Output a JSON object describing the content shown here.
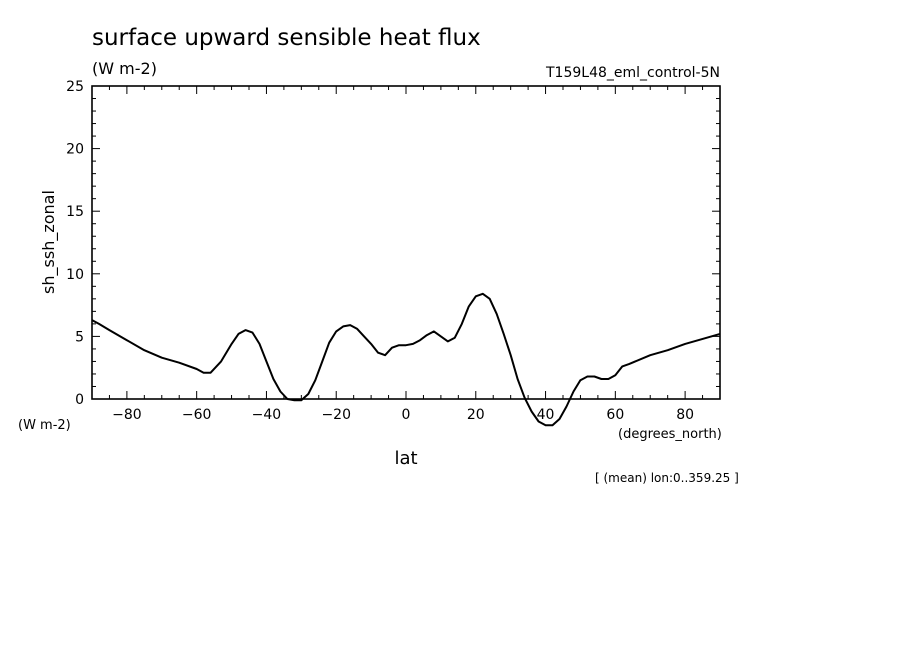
{
  "chart_data": {
    "type": "line",
    "title": "surface upward sensible heat flux",
    "units": "(W m-2)",
    "dataset": "T159L48_eml_control-5N",
    "xlabel": "lat",
    "ylabel": "sh_ssh_zonal",
    "x_units": "(degrees_north)",
    "y_units": "(W m-2)",
    "footnote": "[ (mean) lon:0..359.25 ]",
    "xlim": [
      -90,
      90
    ],
    "ylim": [
      0,
      25
    ],
    "xticks": [
      -80,
      -60,
      -40,
      -20,
      0,
      20,
      40,
      60,
      80
    ],
    "yticks": [
      0,
      5,
      10,
      15,
      20,
      25
    ],
    "grid": false,
    "series": [
      {
        "x": [
          -90,
          -88,
          -85,
          -80,
          -75,
          -70,
          -65,
          -60,
          -58,
          -56,
          -53,
          -50,
          -48,
          -46,
          -44,
          -42,
          -40,
          -38,
          -36,
          -34,
          -32,
          -30,
          -28,
          -26,
          -24,
          -22,
          -20,
          -18,
          -16,
          -14,
          -12,
          -10,
          -8,
          -6,
          -4,
          -2,
          0,
          2,
          4,
          6,
          8,
          10,
          12,
          14,
          16,
          18,
          20,
          22,
          24,
          26,
          28,
          30,
          32,
          34,
          36,
          38,
          40,
          42,
          44,
          46,
          48,
          50,
          52,
          54,
          56,
          58,
          60,
          62,
          64,
          70,
          75,
          80,
          85,
          90
        ],
        "y": [
          6.3,
          6.0,
          5.5,
          4.7,
          3.9,
          3.3,
          2.9,
          2.4,
          2.1,
          2.1,
          3.0,
          4.4,
          5.2,
          5.5,
          5.3,
          4.4,
          3.0,
          1.6,
          0.6,
          0.0,
          -0.1,
          -0.1,
          0.4,
          1.5,
          3.0,
          4.5,
          5.4,
          5.8,
          5.9,
          5.6,
          5.0,
          4.4,
          3.7,
          3.5,
          4.1,
          4.3,
          4.3,
          4.4,
          4.7,
          5.1,
          5.4,
          5.0,
          4.6,
          4.9,
          6.0,
          7.4,
          8.2,
          8.4,
          8.0,
          6.8,
          5.2,
          3.5,
          1.6,
          0.1,
          -1.0,
          -1.8,
          -2.1,
          -2.1,
          -1.6,
          -0.6,
          0.6,
          1.5,
          1.8,
          1.8,
          1.6,
          1.6,
          1.9,
          2.6,
          2.8,
          3.5,
          3.9,
          4.4,
          4.8,
          5.2
        ]
      }
    ]
  }
}
